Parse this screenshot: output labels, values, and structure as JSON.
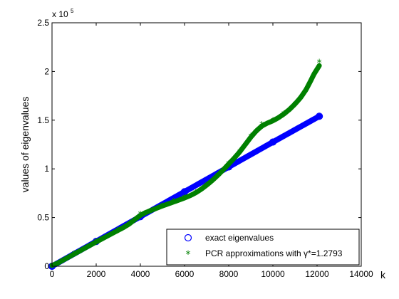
{
  "chart_data": {
    "type": "scatter",
    "title": "",
    "xlabel": "k",
    "ylabel": "values of eigenvalues",
    "xlim": [
      0,
      14000
    ],
    "ylim": [
      0,
      250000
    ],
    "y_exponent_label": "x 10",
    "y_exponent_power": "5",
    "xticks": [
      0,
      2000,
      4000,
      6000,
      8000,
      10000,
      12000,
      14000
    ],
    "xtick_labels": [
      "0",
      "2000",
      "4000",
      "6000",
      "8000",
      "10000",
      "12000",
      "14000"
    ],
    "yticks": [
      0,
      50000,
      100000,
      150000,
      200000,
      250000
    ],
    "ytick_labels": [
      "0",
      "0.5",
      "1",
      "1.5",
      "2",
      "2.5"
    ],
    "grid": false,
    "legend_position": "bottom-right",
    "series": [
      {
        "name": "exact eigenvalues",
        "marker": "circle",
        "color": "#0000ff",
        "x": [
          0,
          2000,
          4000,
          6000,
          8000,
          10000,
          12100
        ],
        "y": [
          0,
          25500,
          51000,
          76500,
          102000,
          127500,
          154000
        ]
      },
      {
        "name": "PCR approximations with γ*=1.2793",
        "marker": "star",
        "color": "#008000",
        "x": [
          0,
          1000,
          2000,
          3000,
          3500,
          4000,
          5000,
          5500,
          6000,
          6500,
          7000,
          7500,
          8000,
          8500,
          9000,
          9500,
          10000,
          10500,
          11000,
          11500,
          12100
        ],
        "y": [
          0,
          12500,
          25000,
          37000,
          43000,
          53000,
          62000,
          66000,
          70000,
          75000,
          83000,
          93000,
          105000,
          117000,
          133000,
          145000,
          149000,
          156000,
          166000,
          180000,
          209000
        ]
      }
    ]
  }
}
